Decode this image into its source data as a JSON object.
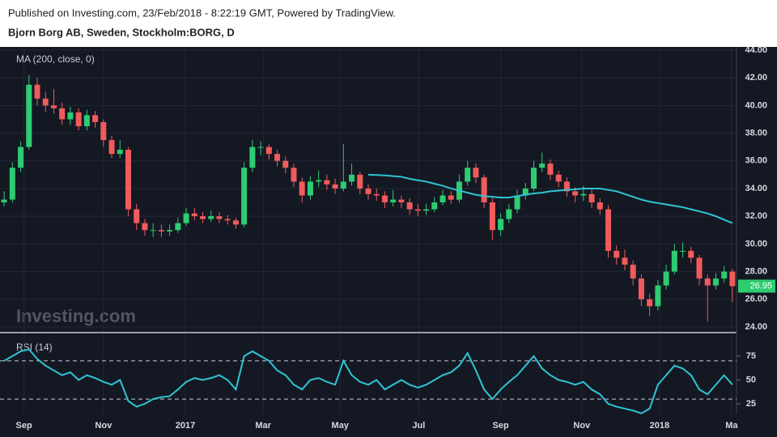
{
  "header": {
    "published": "Published on Investing.com, 23/Feb/2018 - 8:22:19 GMT, Powered by TradingView.",
    "symbol": "Bjorn Borg AB, Sweden, Stockholm:BORG, D"
  },
  "chart_data": [
    {
      "type": "candlestick",
      "label": "MA (200, close, 0)",
      "watermark": "Investing.com",
      "up_color": "#2ecc71",
      "down_color": "#f05b5b",
      "ma_color": "#2ec5d3",
      "xlim": [
        -0.5,
        88.5
      ],
      "xticks": [
        {
          "value": 2.4,
          "label": "Sep"
        },
        {
          "value": 12.0,
          "label": "Nov"
        },
        {
          "value": 21.9,
          "label": "2017"
        },
        {
          "value": 31.3,
          "label": "Mar"
        },
        {
          "value": 40.6,
          "label": "May"
        },
        {
          "value": 50.1,
          "label": "Jul"
        },
        {
          "value": 60.0,
          "label": "Sep"
        },
        {
          "value": 69.8,
          "label": "Nov"
        },
        {
          "value": 79.2,
          "label": "2018"
        },
        {
          "value": 87.9,
          "label": "Ma"
        }
      ],
      "ylim": [
        23.65,
        44.23
      ],
      "yticks": [
        {
          "value": 24,
          "label": "24.00"
        },
        {
          "value": 26,
          "label": "26.00"
        },
        {
          "value": 28,
          "label": "28.00"
        },
        {
          "value": 30,
          "label": "30.00"
        },
        {
          "value": 32,
          "label": "32.00"
        },
        {
          "value": 34,
          "label": "34.00"
        },
        {
          "value": 36,
          "label": "36.00"
        },
        {
          "value": 38,
          "label": "38.00"
        },
        {
          "value": 40,
          "label": "40.00"
        },
        {
          "value": 42,
          "label": "42.00"
        },
        {
          "value": 44,
          "label": "44.00"
        }
      ],
      "grid": true,
      "ohlc": [
        [
          33.0,
          33.8,
          32.7,
          33.2
        ],
        [
          33.2,
          35.9,
          33.0,
          35.5
        ],
        [
          35.5,
          37.4,
          35.2,
          37.0
        ],
        [
          37.0,
          42.2,
          36.8,
          41.5
        ],
        [
          41.5,
          42.0,
          40.0,
          40.5
        ],
        [
          40.5,
          41.0,
          39.5,
          40.0
        ],
        [
          40.0,
          41.2,
          39.4,
          39.8
        ],
        [
          39.8,
          40.2,
          38.6,
          39.0
        ],
        [
          39.0,
          39.9,
          38.6,
          39.5
        ],
        [
          39.5,
          39.8,
          38.2,
          38.5
        ],
        [
          38.5,
          39.7,
          38.2,
          39.3
        ],
        [
          39.3,
          39.6,
          38.4,
          38.8
        ],
        [
          38.8,
          39.0,
          37.0,
          37.5
        ],
        [
          37.5,
          37.8,
          36.2,
          36.5
        ],
        [
          36.5,
          37.5,
          36.2,
          36.8
        ],
        [
          36.8,
          37.0,
          32.0,
          32.5
        ],
        [
          32.5,
          32.9,
          31.0,
          31.5
        ],
        [
          31.5,
          31.8,
          30.6,
          31.0
        ],
        [
          31.0,
          31.5,
          30.5,
          31.0
        ],
        [
          31.0,
          31.4,
          30.5,
          30.9
        ],
        [
          30.9,
          31.4,
          30.6,
          31.0
        ],
        [
          31.0,
          31.9,
          30.8,
          31.5
        ],
        [
          31.5,
          32.6,
          31.3,
          32.2
        ],
        [
          32.2,
          32.6,
          31.7,
          32.0
        ],
        [
          32.0,
          32.3,
          31.5,
          31.8
        ],
        [
          31.8,
          32.4,
          31.6,
          32.0
        ],
        [
          32.0,
          32.3,
          31.5,
          31.8
        ],
        [
          31.8,
          32.1,
          31.4,
          31.7
        ],
        [
          31.7,
          31.9,
          31.1,
          31.4
        ],
        [
          31.4,
          35.9,
          31.2,
          35.5
        ],
        [
          35.5,
          37.5,
          35.2,
          37.0
        ],
        [
          37.0,
          37.4,
          36.4,
          37.0
        ],
        [
          37.0,
          37.2,
          36.1,
          36.5
        ],
        [
          36.5,
          36.8,
          35.6,
          36.0
        ],
        [
          36.0,
          36.3,
          35.1,
          35.5
        ],
        [
          35.5,
          35.8,
          34.1,
          34.5
        ],
        [
          34.5,
          34.8,
          33.0,
          33.5
        ],
        [
          33.5,
          34.9,
          33.2,
          34.5
        ],
        [
          34.5,
          35.3,
          34.1,
          34.6
        ],
        [
          34.6,
          35.0,
          33.9,
          34.3
        ],
        [
          34.3,
          34.7,
          33.6,
          34.0
        ],
        [
          34.0,
          37.2,
          33.8,
          34.5
        ],
        [
          34.5,
          35.8,
          34.2,
          35.0
        ],
        [
          35.0,
          35.2,
          33.6,
          34.0
        ],
        [
          34.0,
          34.3,
          33.2,
          33.6
        ],
        [
          33.6,
          34.0,
          33.1,
          33.5
        ],
        [
          33.5,
          33.8,
          32.6,
          33.0
        ],
        [
          33.0,
          33.9,
          32.7,
          33.2
        ],
        [
          33.2,
          33.5,
          32.6,
          33.0
        ],
        [
          33.0,
          33.3,
          32.1,
          32.5
        ],
        [
          32.5,
          32.9,
          32.0,
          32.4
        ],
        [
          32.4,
          32.9,
          32.1,
          32.5
        ],
        [
          32.5,
          33.4,
          32.3,
          33.0
        ],
        [
          33.0,
          33.9,
          32.8,
          33.5
        ],
        [
          33.5,
          33.8,
          32.9,
          33.2
        ],
        [
          33.2,
          35.0,
          33.0,
          34.5
        ],
        [
          34.5,
          36.0,
          34.2,
          35.5
        ],
        [
          35.5,
          35.8,
          34.4,
          34.8
        ],
        [
          34.8,
          35.0,
          32.6,
          33.0
        ],
        [
          33.0,
          33.3,
          30.3,
          31.0
        ],
        [
          31.0,
          32.2,
          30.6,
          31.8
        ],
        [
          31.8,
          32.9,
          31.5,
          32.5
        ],
        [
          32.5,
          33.9,
          32.2,
          33.5
        ],
        [
          33.5,
          34.4,
          33.2,
          34.0
        ],
        [
          34.0,
          36.0,
          33.8,
          35.5
        ],
        [
          35.5,
          36.6,
          35.2,
          35.8
        ],
        [
          35.8,
          36.1,
          34.6,
          35.0
        ],
        [
          35.0,
          35.3,
          34.1,
          34.5
        ],
        [
          34.5,
          34.8,
          33.4,
          33.8
        ],
        [
          33.8,
          34.1,
          33.0,
          33.5
        ],
        [
          33.5,
          34.2,
          33.1,
          33.6
        ],
        [
          33.6,
          33.9,
          32.6,
          33.0
        ],
        [
          33.0,
          33.3,
          32.1,
          32.5
        ],
        [
          32.5,
          32.8,
          29.0,
          29.5
        ],
        [
          29.5,
          29.9,
          28.5,
          29.0
        ],
        [
          29.0,
          29.6,
          28.1,
          28.5
        ],
        [
          28.5,
          28.8,
          27.0,
          27.5
        ],
        [
          27.5,
          27.8,
          25.5,
          26.0
        ],
        [
          26.0,
          26.4,
          24.8,
          25.5
        ],
        [
          25.5,
          27.4,
          25.2,
          27.0
        ],
        [
          27.0,
          28.5,
          26.7,
          28.0
        ],
        [
          28.0,
          30.0,
          27.8,
          29.5
        ],
        [
          29.5,
          30.1,
          29.0,
          29.5
        ],
        [
          29.5,
          29.8,
          28.6,
          29.0
        ],
        [
          29.0,
          29.2,
          27.0,
          27.5
        ],
        [
          27.5,
          27.8,
          24.4,
          27.0
        ],
        [
          27.0,
          27.9,
          26.7,
          27.5
        ],
        [
          27.5,
          28.4,
          27.2,
          28.0
        ],
        [
          28.0,
          28.2,
          25.8,
          26.95
        ]
      ],
      "ma": [
        null,
        null,
        null,
        null,
        null,
        null,
        null,
        null,
        null,
        null,
        null,
        null,
        null,
        null,
        null,
        null,
        null,
        null,
        null,
        null,
        null,
        null,
        null,
        null,
        null,
        null,
        null,
        null,
        null,
        null,
        null,
        null,
        null,
        null,
        null,
        null,
        null,
        null,
        null,
        null,
        null,
        null,
        null,
        null,
        35.0,
        34.98,
        34.95,
        34.9,
        34.85,
        34.7,
        34.6,
        34.5,
        34.35,
        34.2,
        34.0,
        33.85,
        33.7,
        33.55,
        33.45,
        33.4,
        33.35,
        33.35,
        33.45,
        33.55,
        33.65,
        33.7,
        33.8,
        33.85,
        33.9,
        33.95,
        34.0,
        34.0,
        34.0,
        33.9,
        33.8,
        33.6,
        33.4,
        33.2,
        33.05,
        32.95,
        32.85,
        32.75,
        32.65,
        32.5,
        32.35,
        32.2,
        32.0,
        31.75,
        31.5
      ]
    },
    {
      "type": "line",
      "label": "RSI (14)",
      "color": "#2ec5d3",
      "ylim": [
        14,
        98.7
      ],
      "yticks": [
        25,
        50,
        75
      ],
      "bands": [
        30,
        70
      ],
      "values": [
        70,
        75,
        80,
        82,
        72,
        65,
        60,
        55,
        58,
        50,
        55,
        52,
        48,
        45,
        50,
        28,
        22,
        25,
        30,
        32,
        33,
        40,
        48,
        52,
        50,
        52,
        55,
        50,
        40,
        75,
        80,
        75,
        70,
        60,
        55,
        45,
        40,
        50,
        52,
        48,
        45,
        70,
        55,
        48,
        45,
        50,
        40,
        45,
        50,
        45,
        42,
        45,
        50,
        55,
        58,
        65,
        78,
        60,
        40,
        30,
        40,
        48,
        55,
        65,
        75,
        62,
        55,
        50,
        48,
        45,
        48,
        40,
        35,
        25,
        22,
        20,
        18,
        15,
        20,
        45,
        55,
        65,
        62,
        55,
        40,
        35,
        45,
        55,
        45
      ]
    }
  ]
}
